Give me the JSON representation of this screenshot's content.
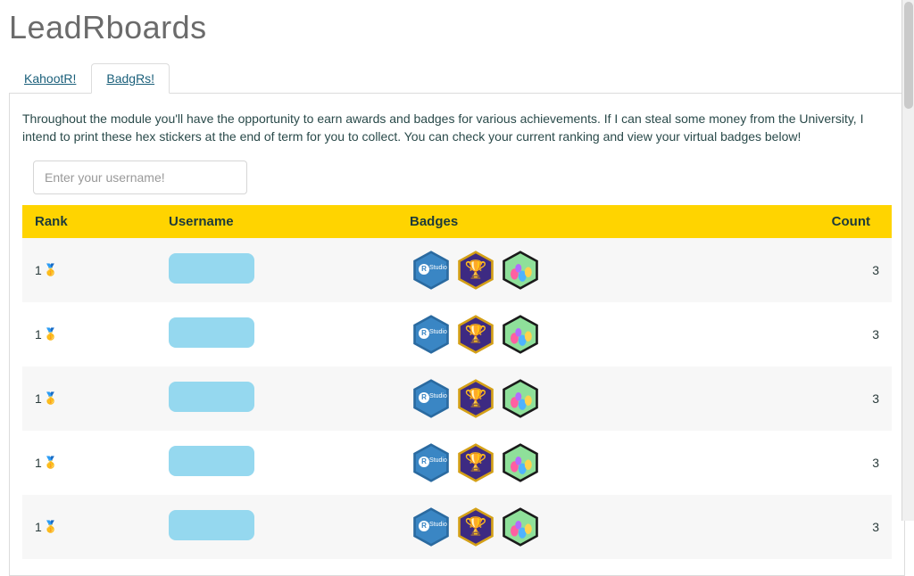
{
  "page_title": "LeadRboards",
  "tabs": [
    {
      "label": "KahootR!",
      "active": false
    },
    {
      "label": "BadgRs!",
      "active": true
    }
  ],
  "intro_text": "Throughout the module you'll have the opportunity to earn awards and badges for various achievements. If I can steal some money from the University, I intend to print these hex stickers at the end of term for you to collect. You can check your current ranking and view your virtual badges below!",
  "search": {
    "placeholder": "Enter your username!",
    "value": ""
  },
  "table": {
    "header_bg": "#ffd400",
    "row_bg_odd": "#f7f7f7",
    "row_bg_even": "#ffffff",
    "columns": [
      "Rank",
      "Username",
      "Badges",
      "Count"
    ],
    "rows": [
      {
        "rank": "1",
        "medal": "🥇",
        "count": "3",
        "badges": [
          "rstudio",
          "trophy",
          "easter"
        ]
      },
      {
        "rank": "1",
        "medal": "🥇",
        "count": "3",
        "badges": [
          "rstudio",
          "trophy",
          "easter"
        ]
      },
      {
        "rank": "1",
        "medal": "🥇",
        "count": "3",
        "badges": [
          "rstudio",
          "trophy",
          "easter"
        ]
      },
      {
        "rank": "1",
        "medal": "🥇",
        "count": "3",
        "badges": [
          "rstudio",
          "trophy",
          "easter"
        ]
      },
      {
        "rank": "1",
        "medal": "🥇",
        "count": "3",
        "badges": [
          "rstudio",
          "trophy",
          "easter"
        ]
      }
    ]
  },
  "badge_styles": {
    "rstudio": {
      "fill": "#3a86c4",
      "stroke": "#2a6aa0",
      "label_r": "R",
      "label_studio": "Studio"
    },
    "trophy": {
      "fill": "#3d2a82",
      "stroke": "#d4a017",
      "emoji": "🏆"
    },
    "easter": {
      "fill": "#7fd08a",
      "stroke": "#1a1a1a"
    }
  },
  "user_chip_color": "#95d8ef"
}
